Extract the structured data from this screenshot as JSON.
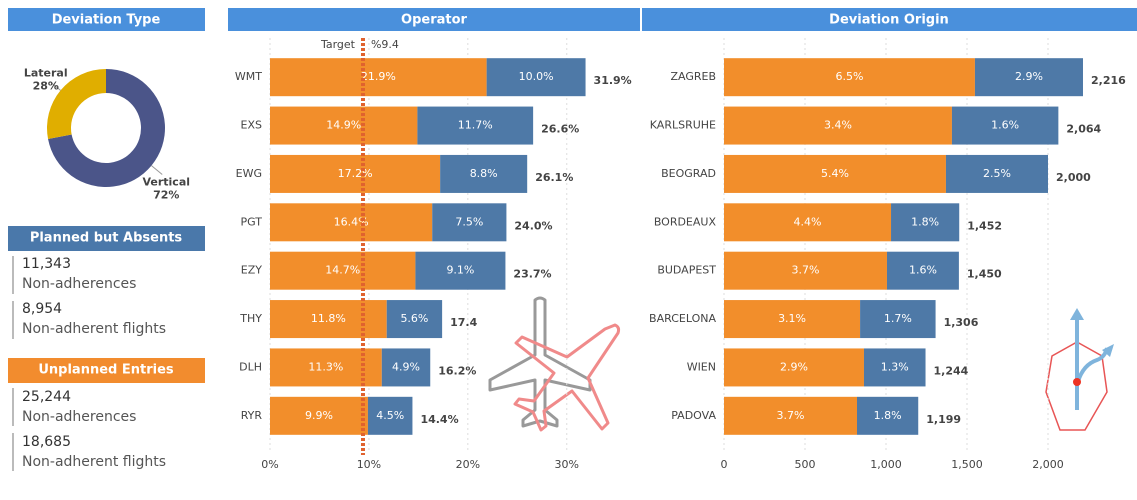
{
  "chart_data": [
    {
      "type": "pie",
      "title": "Deviation Type",
      "donut": true,
      "categories": [
        "Lateral",
        "Vertical"
      ],
      "values": [
        28,
        72
      ],
      "value_labels": [
        "28%",
        "72%"
      ],
      "colors": [
        "#e0ae00",
        "#4b5589"
      ]
    },
    {
      "type": "hbar",
      "title": "Operator",
      "stacked": true,
      "grid": true,
      "categories": [
        "WMT",
        "EXS",
        "EWG",
        "PGT",
        "EZY",
        "THY",
        "DLH",
        "RYR"
      ],
      "series": [
        {
          "color": "#f28e2b",
          "values": [
            21.9,
            14.9,
            17.2,
            16.4,
            14.7,
            11.8,
            11.3,
            9.9
          ],
          "value_labels": [
            "21.9%",
            "14.9%",
            "17.2%",
            "16.4%",
            "14.7%",
            "11.8%",
            "11.3%",
            "9.9%"
          ]
        },
        {
          "color": "#4e79a7",
          "values": [
            10.0,
            11.7,
            8.8,
            7.5,
            9.1,
            5.6,
            4.9,
            4.5
          ],
          "value_labels": [
            "10.0%",
            "11.7%",
            "8.8%",
            "7.5%",
            "9.1%",
            "5.6%",
            "4.9%",
            "4.5%"
          ]
        }
      ],
      "totals": [
        31.9,
        26.6,
        26.1,
        24.0,
        23.7,
        17.4,
        16.2,
        14.4
      ],
      "total_labels": [
        "31.9%",
        "26.6%",
        "26.1%",
        "24.0%",
        "23.7%",
        "17.4",
        "16.2%",
        "14.4%"
      ],
      "xlim": [
        0,
        37
      ],
      "xticks": [
        {
          "value": 0,
          "label": "0%"
        },
        {
          "value": 10,
          "label": "10%"
        },
        {
          "value": 20,
          "label": "20%"
        },
        {
          "value": 30,
          "label": "30%"
        }
      ],
      "target": 9.4,
      "target_label": "Target",
      "target_value_label": "%9.4",
      "target_color": "#e0622e"
    },
    {
      "type": "hbar",
      "title": "Deviation Origin",
      "stacked": true,
      "grid": true,
      "categories": [
        "ZAGREB",
        "KARLSRUHE",
        "BEOGRAD",
        "BORDEAUX",
        "BUDAPEST",
        "BARCELONA",
        "WIEN",
        "PADOVA"
      ],
      "series": [
        {
          "color": "#f28e2b",
          "values": [
            1549,
            1407,
            1370,
            1031,
            1006,
            840,
            864,
            821
          ],
          "labels": [
            "6.5%",
            "3.4%",
            "5.4%",
            "4.4%",
            "3.7%",
            "3.1%",
            "2.9%",
            "3.7%"
          ]
        },
        {
          "color": "#4e79a7",
          "values": [
            667,
            657,
            630,
            421,
            444,
            466,
            380,
            378
          ],
          "labels": [
            "2.9%",
            "1.6%",
            "2.5%",
            "1.8%",
            "1.6%",
            "1.7%",
            "1.3%",
            "1.8%"
          ]
        }
      ],
      "totals": [
        2216,
        2064,
        2000,
        1452,
        1450,
        1306,
        1244,
        1199
      ],
      "total_labels": [
        "2,216",
        "2,064",
        "2,000",
        "1,452",
        "1,450",
        "1,306",
        "1,244",
        "1,199"
      ],
      "xlim": [
        0,
        2500
      ],
      "xticks": [
        0,
        500,
        {
          "value": 1000,
          "label": "1,000"
        },
        {
          "value": 1500,
          "label": "1,500"
        },
        {
          "value": 2000,
          "label": "2,000"
        }
      ]
    }
  ],
  "kpis": [
    {
      "title": "Planned but Absents",
      "items": [
        {
          "value": "11,343",
          "label": "Non-adherences"
        },
        {
          "value": "8,954",
          "label": "Non-adherent flights"
        }
      ]
    },
    {
      "title": "Unplanned Entries",
      "items": [
        {
          "value": "25,244",
          "label": "Non-adherences"
        },
        {
          "value": "18,685",
          "label": "Non-adherent flights"
        }
      ]
    }
  ]
}
